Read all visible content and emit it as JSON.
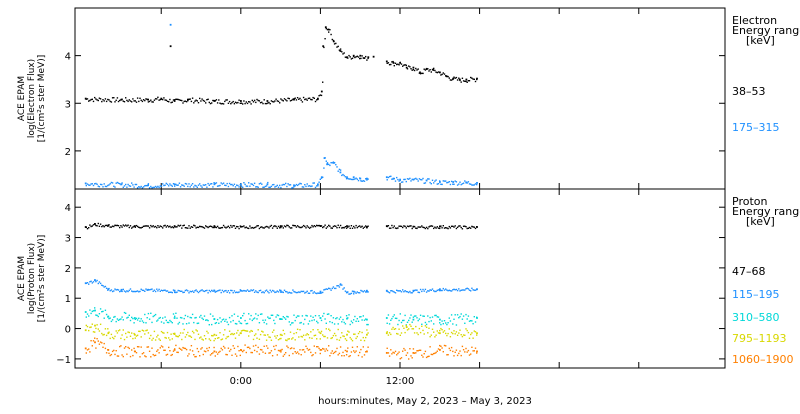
{
  "chart_data": [
    {
      "type": "scatter",
      "panel": "top",
      "ylabel_lines": [
        "ACE EPAM",
        "log(Electron Flux)",
        "[1/(cm²s ster MeV)]"
      ],
      "ylim": [
        1.2,
        5.0
      ],
      "yticks": [
        2,
        3,
        4
      ],
      "legend_title": [
        "Electron",
        "Energy range",
        "[keV]"
      ],
      "series": [
        {
          "name": "38–53",
          "color": "#000000",
          "x": [
            -11.7,
            -9.0,
            -7.0,
            -6.0,
            -5.0,
            -4.0,
            -2.0,
            0.0,
            2.0,
            4.0,
            5.8,
            6.1,
            6.2,
            6.4,
            6.6,
            7.0,
            7.5,
            8.0,
            8.5,
            9.0,
            9.3,
            9.6,
            10.0,
            11.0,
            11.5,
            12.0,
            12.5,
            13.0,
            13.5,
            14.0,
            14.5,
            15.0,
            15.5,
            16.0,
            16.5,
            17.0,
            17.8
          ],
          "y": [
            3.1,
            3.08,
            3.08,
            3.1,
            3.05,
            3.08,
            3.05,
            3.05,
            3.05,
            3.08,
            3.1,
            3.25,
            4.2,
            4.6,
            4.55,
            4.3,
            4.1,
            3.97,
            4.0,
            4.0,
            3.95,
            3.97,
            3.98,
            3.88,
            3.85,
            3.85,
            3.75,
            3.75,
            3.65,
            3.72,
            3.7,
            3.65,
            3.57,
            3.52,
            3.5,
            3.5,
            3.52
          ]
        },
        {
          "name": "175–315",
          "color": "#1e90ff",
          "x": [
            -11.7,
            -9.0,
            -7.0,
            -5.0,
            -2.0,
            0.0,
            2.0,
            4.0,
            5.8,
            6.1,
            6.3,
            6.5,
            7.0,
            7.5,
            8.0,
            8.5,
            9.0,
            9.5,
            11.0,
            11.5,
            12.0,
            13.0,
            14.0,
            15.0,
            16.0,
            17.0,
            17.8
          ],
          "y": [
            1.32,
            1.3,
            1.28,
            1.3,
            1.3,
            1.3,
            1.3,
            1.28,
            1.3,
            1.45,
            1.85,
            1.72,
            1.75,
            1.55,
            1.45,
            1.45,
            1.42,
            1.42,
            1.45,
            1.42,
            1.4,
            1.4,
            1.38,
            1.35,
            1.35,
            1.34,
            1.33
          ]
        }
      ]
    },
    {
      "type": "scatter",
      "panel": "bottom",
      "ylabel_lines": [
        "ACE EPAM",
        "log(Proton Flux)",
        "[1/(cm²s ster MeV)]"
      ],
      "ylim": [
        -1.3,
        4.6
      ],
      "yticks": [
        -1,
        0,
        1,
        2,
        3,
        4
      ],
      "legend_title": [
        "Proton",
        "Energy range",
        "[keV]"
      ],
      "series": [
        {
          "name": "47–68",
          "color": "#000000",
          "x": [
            -11.7,
            -11.0,
            -10.0,
            -8.0,
            -5.0,
            -2.0,
            0.0,
            3.0,
            6.0,
            8.0,
            9.5,
            11.0,
            13.0,
            15.0,
            17.8
          ],
          "y": [
            3.35,
            3.45,
            3.4,
            3.38,
            3.38,
            3.38,
            3.36,
            3.38,
            3.38,
            3.38,
            3.35,
            3.38,
            3.36,
            3.37,
            3.35
          ]
        },
        {
          "name": "115–195",
          "color": "#1e90ff",
          "x": [
            -11.7,
            -11.0,
            -10.0,
            -9.0,
            -7.0,
            -5.0,
            -2.0,
            0.0,
            3.0,
            6.0,
            7.5,
            8.0,
            8.5,
            9.5,
            11.0,
            13.0,
            15.0,
            17.8
          ],
          "y": [
            1.5,
            1.6,
            1.3,
            1.28,
            1.28,
            1.25,
            1.25,
            1.25,
            1.25,
            1.22,
            1.45,
            1.2,
            1.22,
            1.25,
            1.25,
            1.25,
            1.3,
            1.3
          ]
        },
        {
          "name": "310–580",
          "color": "#00d8d8",
          "x": [
            -11.7,
            -11.0,
            -10.0,
            -8.0,
            -5.0,
            -2.0,
            0.0,
            3.0,
            6.0,
            8.0,
            9.5,
            11.0,
            13.0,
            15.0,
            17.8
          ],
          "y": [
            0.55,
            0.6,
            0.4,
            0.35,
            0.35,
            0.32,
            0.35,
            0.32,
            0.35,
            0.33,
            0.3,
            0.35,
            0.3,
            0.3,
            0.35
          ]
        },
        {
          "name": "795–1193",
          "color": "#d8d800",
          "x": [
            -11.7,
            -11.0,
            -10.0,
            -8.0,
            -5.0,
            -2.0,
            0.0,
            3.0,
            6.0,
            8.0,
            9.5,
            11.0,
            12.5,
            15.0,
            17.8
          ],
          "y": [
            -0.05,
            0.1,
            -0.15,
            -0.2,
            -0.18,
            -0.2,
            -0.15,
            -0.2,
            -0.15,
            -0.2,
            -0.2,
            -0.15,
            0.05,
            -0.15,
            -0.15
          ]
        },
        {
          "name": "1060–1900",
          "color": "#ff8000",
          "x": [
            -11.7,
            -11.0,
            -10.0,
            -8.0,
            -5.0,
            -2.0,
            0.0,
            3.0,
            6.0,
            8.0,
            9.5,
            11.0,
            13.0,
            15.0,
            17.8
          ],
          "y": [
            -0.65,
            -0.45,
            -0.7,
            -0.75,
            -0.7,
            -0.75,
            -0.7,
            -0.72,
            -0.7,
            -0.75,
            -0.75,
            -0.8,
            -0.8,
            -0.7,
            -0.75
          ]
        }
      ]
    }
  ],
  "xaxis": {
    "xlim": [
      -12.5,
      36.5
    ],
    "tick_values": [
      0,
      12
    ],
    "tick_labels": [
      "0:00",
      "12:00"
    ],
    "minor_tick_values": [
      -6,
      6,
      18,
      24,
      30
    ],
    "data_gap": [
      9.6,
      10.9
    ],
    "label": "hours:minutes, May  2, 2023 – May  3, 2023"
  }
}
